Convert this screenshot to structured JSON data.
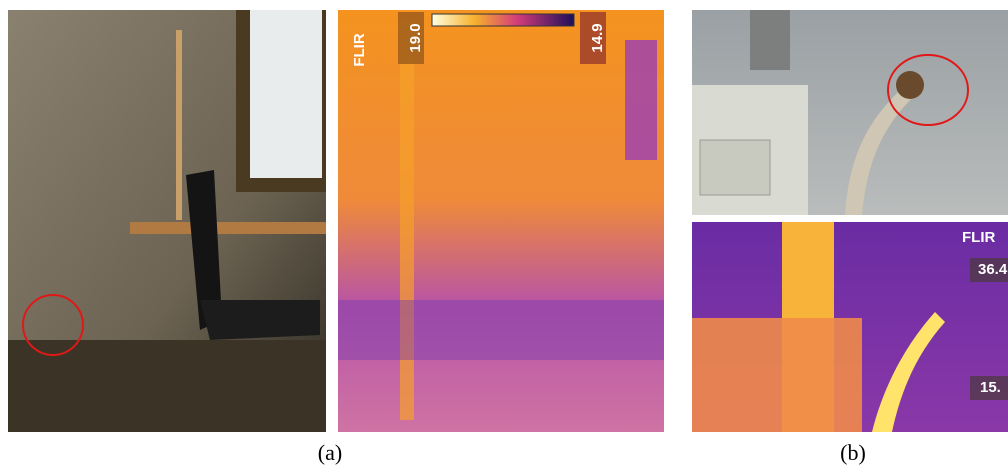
{
  "panel_a": {
    "thermal_brand": "FLIR",
    "scale_max": "19.0",
    "scale_min": "14.9",
    "caption": "(a)"
  },
  "panel_b": {
    "thermal_brand": "FLIR",
    "scale_max": "36.4",
    "scale_min": "15.",
    "caption": "(b)"
  }
}
